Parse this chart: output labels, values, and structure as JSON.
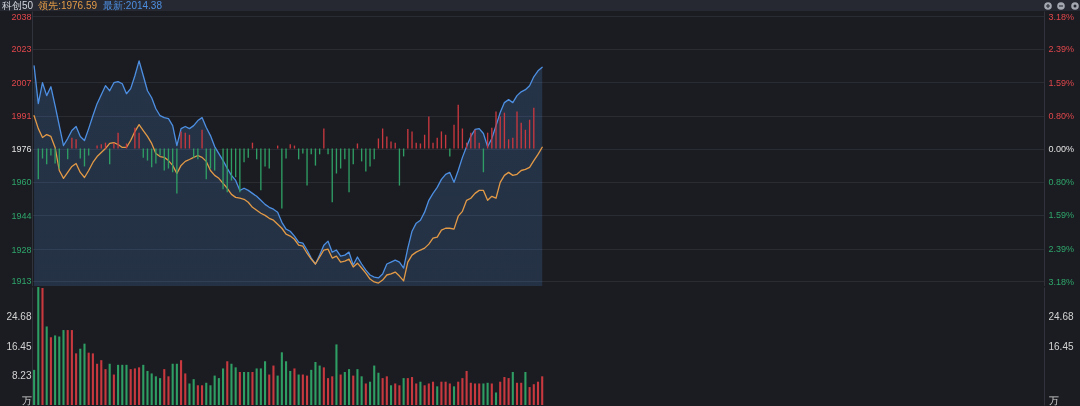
{
  "chart_data": [
    {
      "type": "line",
      "title": "科创50",
      "legend": "top left",
      "grid": "y",
      "tick_labels": "y",
      "categories": [
        null,
        null,
        null,
        null,
        null,
        null,
        null,
        null,
        null,
        null,
        null,
        null,
        null,
        null,
        null,
        null,
        null,
        null,
        null,
        null,
        null,
        null,
        null,
        null,
        null,
        null,
        null,
        null,
        null,
        null,
        null,
        null,
        null,
        null,
        null,
        null,
        null,
        null,
        null,
        null,
        null,
        null,
        null,
        null,
        null,
        null,
        null,
        null,
        null,
        null,
        null,
        null,
        null,
        null,
        null,
        null,
        null,
        null,
        null,
        null,
        null,
        null,
        null,
        null,
        null,
        null,
        null,
        null,
        null,
        null,
        null,
        null,
        null,
        null,
        null,
        null,
        null,
        null,
        null,
        null,
        null,
        null,
        null,
        null,
        null,
        null,
        null,
        null,
        null,
        null,
        null,
        null,
        null,
        null,
        null,
        null,
        null,
        null,
        null,
        null,
        null,
        null,
        null,
        null,
        null,
        null,
        null,
        null,
        null,
        null,
        null,
        null,
        null,
        null,
        null,
        null,
        null,
        null,
        null,
        null,
        null,
        null,
        null,
        null,
        null,
        null,
        null,
        null,
        null,
        null,
        null,
        null,
        null,
        null,
        null,
        null,
        null,
        null,
        null,
        null,
        null,
        null,
        null,
        null,
        null,
        null,
        null,
        null,
        null,
        null,
        null,
        null,
        null,
        null,
        null,
        null,
        null,
        null,
        null,
        null,
        null,
        null,
        null,
        null,
        null,
        null,
        null,
        null,
        null,
        null,
        null,
        null,
        null,
        null,
        null,
        null,
        null,
        null,
        null,
        null,
        null,
        null,
        null,
        null,
        null,
        null,
        null,
        null,
        null,
        null,
        null,
        null,
        null,
        null,
        null,
        null,
        null,
        null,
        null,
        null,
        null,
        null,
        null,
        null,
        null,
        null,
        null,
        null,
        null,
        null,
        null,
        null,
        null,
        null,
        null,
        null,
        null,
        null,
        null,
        null,
        null,
        null,
        null,
        null,
        null,
        null,
        null,
        null,
        null,
        null,
        null,
        null,
        null,
        null,
        null,
        null,
        null,
        null,
        null,
        null,
        null
      ],
      "series": [
        {
          "name": "领先:1976.59",
          "color": "#e39a46",
          "values": [
            1991.5,
            1985.4,
            1981.2,
            1982.6,
            1981.7,
            1976.5,
            1965.6,
            1961.9,
            1964.7,
            1967.5,
            1968.9,
            1964.7,
            1962.3,
            1965.6,
            1969.4,
            1972.2,
            1974.1,
            1976.0,
            1978.4,
            1978.8,
            1977.9,
            1976.5,
            1976.5,
            1979.8,
            1984.0,
            1987.3,
            1984.5,
            1981.7,
            1978.4,
            1973.6,
            1972.2,
            1971.8,
            1970.3,
            1968.0,
            1964.2,
            1968.0,
            1969.9,
            1970.8,
            1971.8,
            1972.7,
            1971.8,
            1969.9,
            1965.6,
            1963.3,
            1961.9,
            1959.5,
            1957.2,
            1954.3,
            1952.9,
            1952.5,
            1952.0,
            1950.6,
            1948.2,
            1946.8,
            1945.4,
            1944.4,
            1943.0,
            1942.1,
            1940.2,
            1938.3,
            1935.5,
            1934.6,
            1933.1,
            1930.3,
            1929.8,
            1926.5,
            1923.7,
            1921.4,
            1924.7,
            1928.0,
            1928.4,
            1924.2,
            1925.1,
            1922.3,
            1922.8,
            1923.7,
            1920.0,
            1921.8,
            1919.5,
            1917.1,
            1914.3,
            1912.9,
            1912.4,
            1913.8,
            1916.2,
            1916.7,
            1917.6,
            1915.7,
            1913.4,
            1922.3,
            1925.6,
            1927.0,
            1928.0,
            1928.9,
            1930.8,
            1933.6,
            1934.1,
            1937.4,
            1938.3,
            1938.3,
            1937.9,
            1944.0,
            1946.3,
            1951.5,
            1952.5,
            1954.8,
            1956.2,
            1956.2,
            1951.5,
            1953.4,
            1952.5,
            1960.0,
            1963.3,
            1964.7,
            1963.3,
            1963.8,
            1965.6,
            1966.1,
            1967.1,
            1970.3,
            1973.2,
            1976.59,
            null,
            null,
            null,
            null,
            null,
            null,
            null,
            null,
            null,
            null,
            null,
            null,
            null,
            null,
            null,
            null,
            null,
            null,
            null,
            null,
            null,
            null,
            null,
            null,
            null,
            null,
            null,
            null,
            null,
            null,
            null,
            null,
            null,
            null,
            null,
            null,
            null,
            null,
            null,
            null,
            null,
            null,
            null,
            null,
            null,
            null,
            null,
            null,
            null,
            null,
            null,
            null,
            null,
            null,
            null,
            null,
            null,
            null,
            null,
            null,
            null,
            null,
            null,
            null,
            null,
            null,
            null,
            null,
            null,
            null,
            null,
            null,
            null,
            null,
            null,
            null,
            null,
            null,
            null,
            null,
            null,
            null,
            null,
            null,
            null,
            null,
            null,
            null,
            null,
            null,
            null,
            null,
            null,
            null,
            null,
            null,
            null,
            null,
            null,
            null,
            null,
            null,
            null,
            null,
            null,
            null,
            null,
            null,
            null,
            null,
            null,
            null,
            null,
            null,
            null,
            null,
            null,
            null,
            null
          ]
        },
        {
          "name": "最新:2014.38",
          "type": "area",
          "color": "#4d8fe2",
          "values": [
            2015.1,
            1997.2,
            2007.1,
            2001.0,
            2005.2,
            1996.3,
            1986.8,
            1977.4,
            1980.7,
            1984.5,
            1986.4,
            1981.7,
            1979.8,
            1985.4,
            1991.5,
            1997.2,
            2001.4,
            2005.7,
            2003.3,
            2007.1,
            2007.6,
            2006.6,
            2001.9,
            2004.3,
            2010.4,
            2017.4,
            2010.4,
            2003.3,
            2000.0,
            1994.8,
            1991.5,
            1990.6,
            1990.1,
            1986.8,
            1977.4,
            1985.4,
            1986.4,
            1985.4,
            1986.8,
            1989.2,
            1990.6,
            1985.9,
            1982.1,
            1976.9,
            1973.6,
            1970.3,
            1966.6,
            1963.3,
            1960.9,
            1956.2,
            1957.2,
            1956.2,
            1954.8,
            1953.4,
            1951.5,
            1949.6,
            1948.2,
            1947.3,
            1945.9,
            1941.1,
            1937.9,
            1936.9,
            1934.6,
            1931.7,
            1931.3,
            1928.0,
            1924.2,
            1921.4,
            1925.6,
            1930.3,
            1932.2,
            1927.0,
            1928.0,
            1925.1,
            1925.6,
            1927.0,
            1920.9,
            1924.7,
            1921.4,
            1918.5,
            1916.2,
            1915.2,
            1914.8,
            1916.7,
            1921.4,
            1922.3,
            1923.2,
            1922.3,
            1919.5,
            1928.9,
            1936.9,
            1940.7,
            1942.1,
            1945.9,
            1951.5,
            1954.8,
            1957.6,
            1961.4,
            1963.8,
            1964.7,
            1960.0,
            1965.6,
            1971.8,
            1976.9,
            1981.7,
            1985.0,
            1985.4,
            1983.1,
            1976.9,
            1980.7,
            1986.8,
            1993.0,
            1997.7,
            1999.1,
            1997.7,
            2001.0,
            2002.8,
            2003.8,
            2005.7,
            2009.9,
            2012.7,
            2014.38,
            null,
            null,
            null,
            null,
            null,
            null,
            null,
            null,
            null,
            null,
            null,
            null,
            null,
            null,
            null,
            null,
            null,
            null,
            null,
            null,
            null,
            null,
            null,
            null,
            null,
            null,
            null,
            null,
            null,
            null,
            null,
            null,
            null,
            null,
            null,
            null,
            null,
            null,
            null,
            null,
            null,
            null,
            null,
            null,
            null,
            null,
            null,
            null,
            null,
            null,
            null,
            null,
            null,
            null,
            null,
            null,
            null,
            null,
            null,
            null,
            null,
            null,
            null,
            null,
            null,
            null,
            null,
            null,
            null,
            null,
            null,
            null,
            null,
            null,
            null,
            null,
            null,
            null,
            null,
            null,
            null,
            null,
            null,
            null,
            null,
            null,
            null,
            null,
            null,
            null,
            null,
            null,
            null,
            null,
            null,
            null,
            null,
            null,
            null,
            null,
            null,
            null,
            null,
            null,
            null,
            null,
            null,
            null,
            null,
            null,
            null,
            null,
            null,
            null,
            null,
            null,
            null,
            null,
            null
          ]
        },
        {
          "type": "bar",
          "axis": "y2",
          "values": [
            null,
            -0.74,
            -0.24,
            -0.38,
            -0.17,
            -0.36,
            -0.48,
            null,
            -0.26,
            0.26,
            0.22,
            -0.24,
            -0.43,
            -0.17,
            null,
            0.07,
            0.1,
            0.14,
            -0.38,
            0.14,
            0.38,
            null,
            0.12,
            null,
            0.5,
            0.38,
            -0.22,
            -0.29,
            -0.45,
            -0.36,
            -0.17,
            -0.53,
            -0.48,
            -0.57,
            -1.08,
            0.41,
            0.38,
            0.33,
            -0.22,
            -0.26,
            0.45,
            -0.74,
            -0.48,
            -0.53,
            null,
            -0.98,
            -1.05,
            -0.77,
            -0.69,
            -1.05,
            -0.33,
            -0.22,
            0.14,
            -0.26,
            -1.0,
            -0.43,
            -0.48,
            null,
            0.07,
            -1.44,
            -0.24,
            0.1,
            0.07,
            -0.26,
            -0.12,
            -0.89,
            -0.14,
            -0.41,
            -0.14,
            0.48,
            -0.14,
            -1.29,
            -0.6,
            -0.48,
            -0.26,
            -1.05,
            -0.38,
            0.12,
            -0.31,
            -0.55,
            -0.43,
            -0.26,
            0.24,
            0.48,
            0.29,
            0.17,
            0.14,
            -0.89,
            -0.19,
            0.47,
            0.41,
            0.14,
            0.12,
            0.33,
            0.77,
            0.14,
            0.26,
            0.41,
            0.33,
            -0.19,
            0.57,
            1.05,
            0.48,
            0.14,
            0.38,
            0.45,
            0.14,
            -0.57,
            0.38,
            0.5,
            0.89,
            0.77,
            0.86,
            0.22,
            0.26,
            0.89,
            0.62,
            0.45,
            0.69,
            0.98,
            null,
            null,
            null,
            null,
            null,
            null,
            null,
            null,
            null,
            null,
            null,
            null,
            null,
            null,
            null,
            null,
            null,
            null,
            null,
            null,
            null,
            null,
            null,
            null,
            null,
            null,
            null,
            null,
            null,
            null,
            null,
            null,
            null,
            null,
            null,
            null,
            null,
            null,
            null,
            null,
            null,
            null,
            null,
            null,
            null,
            null,
            null,
            null,
            null,
            null,
            null,
            null,
            null,
            null,
            null,
            null,
            null,
            null,
            null,
            null,
            null,
            null,
            null,
            null,
            null,
            null,
            null,
            null,
            null,
            null,
            null,
            null,
            null,
            null,
            null,
            null,
            null,
            null,
            null,
            null,
            null,
            null,
            null,
            null,
            null,
            null,
            null,
            null,
            null,
            null,
            null,
            null,
            null,
            null,
            null,
            null,
            null,
            null,
            null,
            null,
            null,
            null,
            null,
            null,
            null,
            null,
            null,
            null,
            null,
            null,
            null,
            null,
            null,
            null,
            null,
            null,
            null,
            null,
            null,
            null,
            null
          ],
          "colors": [
            null,
            "#2f9e64",
            "#2f9e64",
            "#2f9e64",
            "#2f9e64",
            "#2f9e64",
            "#2f9e64",
            null,
            "#2f9e64",
            "#c8383f",
            "#c8383f",
            "#2f9e64",
            "#2f9e64",
            "#2f9e64",
            null,
            "#c8383f",
            "#c8383f",
            "#c8383f",
            "#2f9e64",
            "#c8383f",
            "#c8383f",
            null,
            "#c8383f",
            null,
            "#c8383f",
            "#c8383f",
            "#2f9e64",
            "#2f9e64",
            "#2f9e64",
            "#2f9e64",
            "#2f9e64",
            "#2f9e64",
            "#2f9e64",
            "#2f9e64",
            "#2f9e64",
            "#c8383f",
            "#c8383f",
            "#c8383f",
            "#2f9e64",
            "#2f9e64",
            "#c8383f",
            "#2f9e64",
            "#2f9e64",
            "#2f9e64",
            null,
            "#2f9e64",
            "#2f9e64",
            "#2f9e64",
            "#2f9e64",
            "#2f9e64",
            "#2f9e64",
            "#2f9e64",
            "#c8383f",
            "#2f9e64",
            "#2f9e64",
            "#2f9e64",
            "#2f9e64",
            null,
            "#c8383f",
            "#2f9e64",
            "#2f9e64",
            "#c8383f",
            "#c8383f",
            "#2f9e64",
            "#2f9e64",
            "#2f9e64",
            "#2f9e64",
            "#2f9e64",
            "#2f9e64",
            "#c8383f",
            "#2f9e64",
            "#2f9e64",
            "#2f9e64",
            "#2f9e64",
            "#2f9e64",
            "#2f9e64",
            "#2f9e64",
            "#c8383f",
            "#2f9e64",
            "#2f9e64",
            "#2f9e64",
            "#2f9e64",
            "#c8383f",
            "#c8383f",
            "#c8383f",
            "#c8383f",
            "#c8383f",
            "#2f9e64",
            "#2f9e64",
            "#c8383f",
            "#c8383f",
            "#c8383f",
            "#c8383f",
            "#c8383f",
            "#c8383f",
            "#c8383f",
            "#c8383f",
            "#c8383f",
            "#c8383f",
            "#2f9e64",
            "#c8383f",
            "#c8383f",
            "#c8383f",
            "#c8383f",
            "#c8383f",
            "#c8383f",
            "#c8383f",
            "#2f9e64",
            "#c8383f",
            "#c8383f",
            "#c8383f",
            "#c8383f",
            "#c8383f",
            "#c8383f",
            "#c8383f",
            "#c8383f",
            "#c8383f",
            "#c8383f",
            "#c8383f",
            "#c8383f",
            null,
            null,
            null,
            null,
            null,
            null,
            null,
            null,
            null,
            null,
            null,
            null,
            null,
            null,
            null,
            null,
            null,
            null,
            null,
            null,
            null,
            null,
            null,
            null,
            null,
            null,
            null,
            null,
            null,
            null,
            null,
            null,
            null,
            null,
            null,
            null,
            null,
            null,
            null,
            null,
            null,
            null,
            null,
            null,
            null,
            null,
            null,
            null,
            null,
            null,
            null,
            null,
            null,
            null,
            null,
            null,
            null,
            null,
            null,
            null,
            null,
            null,
            null,
            null,
            null,
            null,
            null,
            null,
            null,
            null,
            null,
            null,
            null,
            null,
            null,
            null,
            null,
            null,
            null,
            null,
            null,
            null,
            null,
            null,
            null,
            null,
            null,
            null,
            null,
            null,
            null,
            null,
            null,
            null,
            null,
            null,
            null,
            null,
            null,
            null,
            null,
            null,
            null,
            null,
            null,
            null,
            null,
            null,
            null,
            null,
            null,
            null,
            null,
            null,
            null,
            null,
            null,
            null,
            null,
            null,
            null
          ]
        }
      ],
      "ylim": [
        1911,
        2041
      ],
      "yticks": [
        {
          "value": 1913.4,
          "label": "1913"
        },
        {
          "value": 1928.4,
          "label": "1928"
        },
        {
          "value": 1944.4,
          "label": "1944"
        },
        {
          "value": 1960.2,
          "label": "1960"
        },
        1976,
        {
          "value": 1991.4,
          "label": "1991"
        },
        {
          "value": 2007.3,
          "label": "2007"
        },
        {
          "value": 2023.1,
          "label": "2023"
        },
        {
          "value": 2038.4,
          "label": "2038"
        }
      ],
      "y2lim": [
        -3.3,
        3.3
      ],
      "y2ticks": [
        {
          "value": -3.18,
          "label": "3.18%"
        },
        {
          "value": -2.39,
          "label": "2.39%"
        },
        {
          "value": -1.59,
          "label": "1.59%"
        },
        {
          "value": -0.8,
          "label": "0.80%"
        },
        {
          "value": 0,
          "label": "0.00%"
        },
        {
          "value": 0.8,
          "label": "0.80%"
        },
        {
          "value": 1.59,
          "label": "1.59%"
        },
        {
          "value": 2.39,
          "label": "2.39%"
        },
        {
          "value": 3.18,
          "label": "3.18%"
        }
      ]
    },
    {
      "type": "bar",
      "tick_labels": "y",
      "categories": [
        null,
        null,
        null,
        null,
        null,
        null,
        null,
        null,
        null,
        null,
        null,
        null,
        null,
        null,
        null,
        null,
        null,
        null,
        null,
        null,
        null,
        null,
        null,
        null,
        null,
        null,
        null,
        null,
        null,
        null,
        null,
        null,
        null,
        null,
        null,
        null,
        null,
        null,
        null,
        null,
        null,
        null,
        null,
        null,
        null,
        null,
        null,
        null,
        null,
        null,
        null,
        null,
        null,
        null,
        null,
        null,
        null,
        null,
        null,
        null,
        null,
        null,
        null,
        null,
        null,
        null,
        null,
        null,
        null,
        null,
        null,
        null,
        null,
        null,
        null,
        null,
        null,
        null,
        null,
        null,
        null,
        null,
        null,
        null,
        null,
        null,
        null,
        null,
        null,
        null,
        null,
        null,
        null,
        null,
        null,
        null,
        null,
        null,
        null,
        null,
        null,
        null,
        null,
        null,
        null,
        null,
        null,
        null,
        null,
        null,
        null,
        null,
        null,
        null,
        null,
        null,
        null,
        null,
        null,
        null,
        null,
        null,
        null,
        null,
        null,
        null,
        null,
        null,
        null,
        null,
        null,
        null,
        null,
        null,
        null,
        null,
        null,
        null,
        null,
        null,
        null,
        null,
        null,
        null,
        null,
        null,
        null,
        null,
        null,
        null,
        null,
        null,
        null,
        null,
        null,
        null,
        null,
        null,
        null,
        null,
        null,
        null,
        null,
        null,
        null,
        null,
        null,
        null,
        null,
        null,
        null,
        null,
        null,
        null,
        null,
        null,
        null,
        null,
        null,
        null,
        null,
        null,
        null,
        null,
        null,
        null,
        null,
        null,
        null,
        null,
        null,
        null,
        null,
        null,
        null,
        null,
        null,
        null,
        null,
        null,
        null,
        null,
        null,
        null,
        null,
        null,
        null,
        null,
        null,
        null,
        null,
        null,
        null,
        null,
        null,
        null,
        null,
        null,
        null,
        null,
        null,
        null,
        null,
        null,
        null,
        null,
        null,
        null,
        null,
        null,
        null,
        null,
        null,
        null,
        null,
        null,
        null,
        null,
        null,
        null,
        null
      ],
      "values": [
        9.8,
        32.9,
        32.6,
        21.9,
        18.9,
        19.4,
        19.1,
        20.9,
        20.9,
        20.9,
        14.4,
        15.7,
        17.1,
        14.6,
        14.4,
        11.5,
        12.5,
        10.0,
        11.5,
        8.5,
        11.2,
        11.2,
        11.2,
        10.0,
        10.2,
        10.5,
        11.2,
        9.5,
        8.8,
        8.0,
        7.5,
        10.0,
        8.0,
        11.5,
        11.5,
        12.5,
        8.8,
        6.0,
        7.2,
        5.5,
        5.5,
        6.2,
        5.5,
        8.2,
        7.5,
        10.2,
        12.2,
        11.5,
        10.5,
        9.2,
        9.2,
        9.2,
        9.2,
        10.2,
        10.2,
        12.2,
        8.5,
        11.0,
        8.2,
        14.7,
        12.2,
        9.5,
        10.2,
        8.5,
        8.5,
        8.2,
        9.8,
        12.0,
        11.0,
        10.5,
        7.5,
        8.0,
        16.9,
        8.5,
        9.2,
        10.0,
        8.2,
        10.0,
        8.0,
        6.0,
        6.5,
        11.0,
        9.0,
        7.5,
        8.0,
        5.5,
        6.0,
        5.5,
        7.5,
        7.5,
        7.8,
        6.0,
        6.5,
        5.5,
        6.0,
        6.5,
        5.2,
        6.5,
        6.5,
        6.0,
        5.2,
        6.5,
        7.5,
        9.5,
        6.2,
        6.0,
        6.0,
        6.0,
        6.2,
        6.0,
        3.5,
        6.5,
        7.8,
        7.5,
        9.2,
        6.2,
        6.2,
        9.2,
        5.0,
        5.8,
        6.5,
        8.0,
        null,
        null,
        null,
        null,
        null,
        null,
        null,
        null,
        null,
        null,
        null,
        null,
        null,
        null,
        null,
        null,
        null,
        null,
        null,
        null,
        null,
        null,
        null,
        null,
        null,
        null,
        null,
        null,
        null,
        null,
        null,
        null,
        null,
        null,
        null,
        null,
        null,
        null,
        null,
        null,
        null,
        null,
        null,
        null,
        null,
        null,
        null,
        null,
        null,
        null,
        null,
        null,
        null,
        null,
        null,
        null,
        null,
        null,
        null,
        null,
        null,
        null,
        null,
        null,
        null,
        null,
        null,
        null,
        null,
        null,
        null,
        null,
        null,
        null,
        null,
        null,
        null,
        null,
        null,
        null,
        null,
        null,
        null,
        null,
        null,
        null,
        null,
        null,
        null,
        null,
        null,
        null,
        null,
        null,
        null,
        null,
        null,
        null,
        null,
        null,
        null,
        null,
        null,
        null,
        null,
        null,
        null,
        null,
        null,
        null,
        null,
        null,
        null,
        null,
        null,
        null,
        null,
        null,
        null
      ],
      "colors": [
        "#2f9e64",
        "#2f9e64",
        "#c8383f",
        "#2f9e64",
        "#c8383f",
        "#2f9e64",
        "#2f9e64",
        "#2f9e64",
        "#c8383f",
        "#c8383f",
        "#c8383f",
        "#2f9e64",
        "#2f9e64",
        "#c8383f",
        "#c8383f",
        "#c8383f",
        "#c8383f",
        "#c8383f",
        "#2f9e64",
        "#c8383f",
        "#2f9e64",
        "#2f9e64",
        "#2f9e64",
        "#c8383f",
        "#c8383f",
        "#c8383f",
        "#2f9e64",
        "#2f9e64",
        "#2f9e64",
        "#2f9e64",
        "#2f9e64",
        "#c8383f",
        "#c8383f",
        "#2f9e64",
        "#2f9e64",
        "#c8383f",
        "#c8383f",
        "#2f9e64",
        "#2f9e64",
        "#c8383f",
        "#c8383f",
        "#2f9e64",
        "#2f9e64",
        "#2f9e64",
        "#2f9e64",
        "#2f9e64",
        "#c8383f",
        "#2f9e64",
        "#2f9e64",
        "#c8383f",
        "#2f9e64",
        "#2f9e64",
        "#c8383f",
        "#2f9e64",
        "#2f9e64",
        "#2f9e64",
        "#c8383f",
        "#c8383f",
        "#2f9e64",
        "#2f9e64",
        "#2f9e64",
        "#2f9e64",
        "#c8383f",
        "#2f9e64",
        "#c8383f",
        "#c8383f",
        "#2f9e64",
        "#2f9e64",
        "#2f9e64",
        "#c8383f",
        "#c8383f",
        "#c8383f",
        "#2f9e64",
        "#c8383f",
        "#2f9e64",
        "#2f9e64",
        "#c8383f",
        "#2f9e64",
        "#2f9e64",
        "#c8383f",
        "#2f9e64",
        "#2f9e64",
        "#2f9e64",
        "#c8383f",
        "#c8383f",
        "#2f9e64",
        "#c8383f",
        "#c8383f",
        "#2f9e64",
        "#c8383f",
        "#c8383f",
        "#c8383f",
        "#2f9e64",
        "#c8383f",
        "#c8383f",
        "#c8383f",
        "#2f9e64",
        "#c8383f",
        "#c8383f",
        "#c8383f",
        "#2f9e64",
        "#c8383f",
        "#c8383f",
        "#c8383f",
        "#c8383f",
        "#c8383f",
        "#c8383f",
        "#2f9e64",
        "#2f9e64",
        "#c8383f",
        "#2f9e64",
        "#c8383f",
        "#c8383f",
        "#c8383f",
        "#2f9e64",
        "#c8383f",
        "#c8383f",
        "#2f9e64",
        "#c8383f",
        "#c8383f",
        "#c8383f",
        "#c8383f",
        null,
        null,
        null,
        null,
        null,
        null,
        null,
        null,
        null,
        null,
        null,
        null,
        null,
        null,
        null,
        null,
        null,
        null,
        null,
        null,
        null,
        null,
        null,
        null,
        null,
        null,
        null,
        null,
        null,
        null,
        null,
        null,
        null,
        null,
        null,
        null,
        null,
        null,
        null,
        null,
        null,
        null,
        null,
        null,
        null,
        null,
        null,
        null,
        null,
        null,
        null,
        null,
        null,
        null,
        null,
        null,
        null,
        null,
        null,
        null,
        null,
        null,
        null,
        null,
        null,
        null,
        null,
        null,
        null,
        null,
        null,
        null,
        null,
        null,
        null,
        null,
        null,
        null,
        null,
        null,
        null,
        null,
        null,
        null,
        null,
        null,
        null,
        null,
        null,
        null,
        null,
        null,
        null,
        null,
        null,
        null,
        null,
        null,
        null,
        null,
        null,
        null,
        null,
        null,
        null,
        null,
        null,
        null,
        null,
        null,
        null,
        null,
        null,
        null,
        null,
        null,
        null,
        null,
        null
      ],
      "ylim": [
        0,
        32.91
      ],
      "yticks": [
        {
          "value": 0,
          "label": "万"
        },
        8.23,
        16.45,
        24.68
      ],
      "y2lim": [
        0,
        32.91
      ],
      "y2ticks": [
        {
          "value": 0,
          "label": "万"
        },
        16.45,
        24.68
      ]
    }
  ]
}
